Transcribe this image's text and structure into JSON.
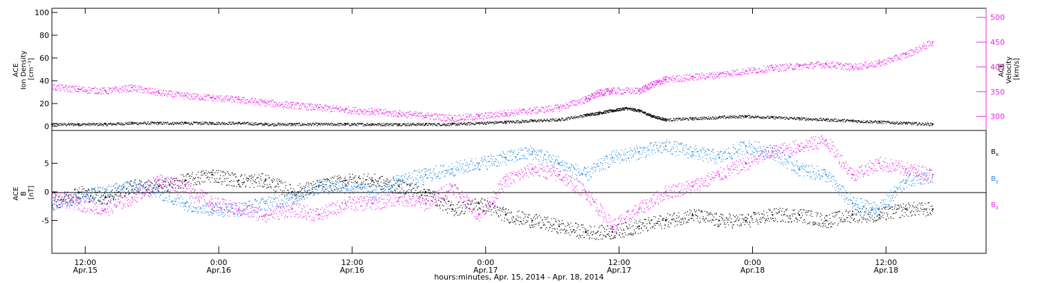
{
  "colors": {
    "black": "#000000",
    "magenta": "#ee22ee",
    "blue": "#1e88e5"
  },
  "chart_data": [
    {
      "type": "scatter",
      "panel": "top",
      "ylabel": [
        "ACE",
        "Ion Density",
        "[cm⁻³]"
      ],
      "ylim": [
        0,
        100
      ],
      "yticks": [
        "0",
        "20",
        "40",
        "60",
        "80",
        "100"
      ],
      "y2label": [
        "ACE",
        "Velocity",
        "[km/s]"
      ],
      "y2lim": [
        280,
        510
      ],
      "y2ticks": [
        "300",
        "350",
        "400",
        "450",
        "500"
      ],
      "xlim_days": [
        0,
        3.5
      ],
      "series": [
        {
          "color": "black",
          "axis": "left",
          "x": [
            0.0,
            0.1,
            0.2,
            0.3,
            0.4,
            0.5,
            0.6,
            0.7,
            0.8,
            0.9,
            1.0,
            1.1,
            1.2,
            1.3,
            1.4,
            1.5,
            1.6,
            1.7,
            1.8,
            1.9,
            2.0,
            2.05,
            2.1,
            2.15,
            2.2,
            2.25,
            2.3,
            2.4,
            2.5,
            2.6,
            2.7,
            2.8,
            2.9,
            3.0,
            3.1,
            3.2,
            3.3
          ],
          "y": [
            2,
            2,
            2,
            3,
            3,
            3,
            3,
            3,
            2,
            2,
            2,
            2,
            2,
            2,
            2,
            2,
            3,
            4,
            5,
            6,
            10,
            12,
            14,
            16,
            14,
            9,
            6,
            7,
            8,
            9,
            8,
            7,
            6,
            5,
            4,
            3,
            2
          ]
        },
        {
          "color": "magenta",
          "axis": "right",
          "x": [
            0.0,
            0.1,
            0.2,
            0.3,
            0.4,
            0.5,
            0.6,
            0.7,
            0.8,
            0.9,
            1.0,
            1.1,
            1.2,
            1.3,
            1.4,
            1.5,
            1.6,
            1.7,
            1.8,
            1.9,
            2.0,
            2.05,
            2.1,
            2.2,
            2.25,
            2.3,
            2.4,
            2.5,
            2.6,
            2.7,
            2.8,
            2.9,
            3.0,
            3.1,
            3.2,
            3.3
          ],
          "y": [
            360,
            355,
            352,
            358,
            348,
            342,
            338,
            334,
            328,
            323,
            318,
            314,
            310,
            306,
            302,
            297,
            300,
            307,
            312,
            318,
            335,
            348,
            352,
            352,
            365,
            375,
            380,
            385,
            392,
            398,
            402,
            406,
            400,
            408,
            425,
            450
          ]
        }
      ]
    },
    {
      "type": "scatter",
      "panel": "bottom",
      "ylabel": [
        "ACE",
        "B",
        "[nT]"
      ],
      "ylim": [
        -10,
        10
      ],
      "yticks": [
        "-5",
        "0",
        "5"
      ],
      "xlabel": "hours:minutes, Apr. 15, 2014 - Apr. 18, 2014",
      "xlim_days": [
        0,
        3.5
      ],
      "xticks": [
        {
          "day": 0.125,
          "time": "12:00",
          "date": "Apr.15"
        },
        {
          "day": 0.625,
          "time": "0:00",
          "date": "Apr.16"
        },
        {
          "day": 1.125,
          "time": "12:00",
          "date": "Apr.16"
        },
        {
          "day": 1.625,
          "time": "0:00",
          "date": "Apr.17"
        },
        {
          "day": 2.125,
          "time": "12:00",
          "date": "Apr.17"
        },
        {
          "day": 2.625,
          "time": "0:00",
          "date": "Apr.18"
        },
        {
          "day": 3.125,
          "time": "12:00",
          "date": "Apr.18"
        }
      ],
      "legend": [
        {
          "main": "B",
          "sub": "x",
          "color": "black"
        },
        {
          "main": "B",
          "sub": "y",
          "color": "blue"
        },
        {
          "main": "B",
          "sub": "z",
          "color": "magenta"
        }
      ],
      "series": [
        {
          "color": "black",
          "x": [
            0.0,
            0.1,
            0.2,
            0.3,
            0.4,
            0.5,
            0.6,
            0.7,
            0.8,
            0.9,
            1.0,
            1.1,
            1.2,
            1.3,
            1.4,
            1.5,
            1.6,
            1.7,
            1.8,
            1.9,
            2.0,
            2.1,
            2.2,
            2.3,
            2.4,
            2.5,
            2.6,
            2.7,
            2.8,
            2.9,
            3.0,
            3.1,
            3.2,
            3.3
          ],
          "y": [
            -2,
            0,
            -1,
            1,
            1,
            2,
            3,
            2,
            2,
            0,
            1,
            2,
            2,
            1,
            0,
            -3,
            -2,
            -4,
            -5,
            -6,
            -7,
            -7,
            -6,
            -5,
            -4,
            -5,
            -5,
            -4,
            -4,
            -5,
            -4,
            -4,
            -3,
            -3
          ]
        },
        {
          "color": "blue",
          "x": [
            0.0,
            0.1,
            0.2,
            0.3,
            0.4,
            0.5,
            0.6,
            0.7,
            0.8,
            0.9,
            1.0,
            1.1,
            1.2,
            1.3,
            1.4,
            1.5,
            1.6,
            1.7,
            1.8,
            1.9,
            2.0,
            2.1,
            2.2,
            2.3,
            2.4,
            2.5,
            2.6,
            2.7,
            2.8,
            2.9,
            3.0,
            3.1,
            3.2,
            3.3
          ],
          "y": [
            -2,
            -1,
            0,
            1,
            0,
            -2,
            -3,
            -3,
            -2,
            -1,
            1,
            1,
            0,
            2,
            3,
            4,
            5,
            6,
            7,
            5,
            3,
            6,
            7,
            8,
            7,
            6,
            8,
            7,
            4,
            3,
            -2,
            -3,
            2,
            3
          ]
        },
        {
          "color": "magenta",
          "x": [
            0.0,
            0.1,
            0.2,
            0.3,
            0.4,
            0.5,
            0.6,
            0.7,
            0.8,
            0.9,
            1.0,
            1.1,
            1.2,
            1.3,
            1.4,
            1.5,
            1.6,
            1.7,
            1.8,
            1.9,
            2.0,
            2.1,
            2.2,
            2.3,
            2.4,
            2.5,
            2.6,
            2.7,
            2.8,
            2.9,
            3.0,
            3.1,
            3.2,
            3.3
          ],
          "y": [
            -1,
            -2,
            -3,
            -1,
            2,
            1,
            -2,
            -3,
            -4,
            -3,
            -4,
            -2,
            -2,
            -1,
            -2,
            1,
            -4,
            2,
            4,
            3,
            0,
            -6,
            -3,
            0,
            1,
            3,
            5,
            7,
            8,
            9,
            3,
            5,
            4,
            3
          ]
        }
      ]
    }
  ]
}
